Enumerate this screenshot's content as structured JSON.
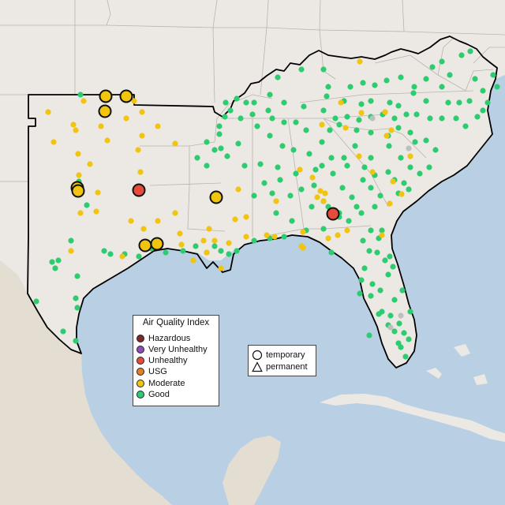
{
  "legend": {
    "title": "Air Quality Index",
    "categories": [
      {
        "label": "Hazardous",
        "color": "#7e2a2a"
      },
      {
        "label": "Very Unhealthy",
        "color": "#8e4db8"
      },
      {
        "label": "Unhealthy",
        "color": "#e64a3b"
      },
      {
        "label": "USG",
        "color": "#e67e22"
      },
      {
        "label": "Moderate",
        "color": "#f1c40f"
      },
      {
        "label": "Good",
        "color": "#2ecc71"
      }
    ]
  },
  "shape_legend": {
    "items": [
      {
        "label": "temporary",
        "shape": "circle-outline-icon"
      },
      {
        "label": "permanent",
        "shape": "triangle-outline-icon"
      }
    ]
  },
  "colors": {
    "ocean": "#b9cfe3",
    "land": "#ece9e4",
    "land_mexico": "#e4ddd2",
    "state_border": "#b8b3ad",
    "region_outline": "#000000",
    "inactive_monitor": "#bfbfbf"
  },
  "monitors": {
    "moderate_temporary_large": 9,
    "unhealthy_temporary_large": 2,
    "moderate_small": 70,
    "good_small": 230
  }
}
